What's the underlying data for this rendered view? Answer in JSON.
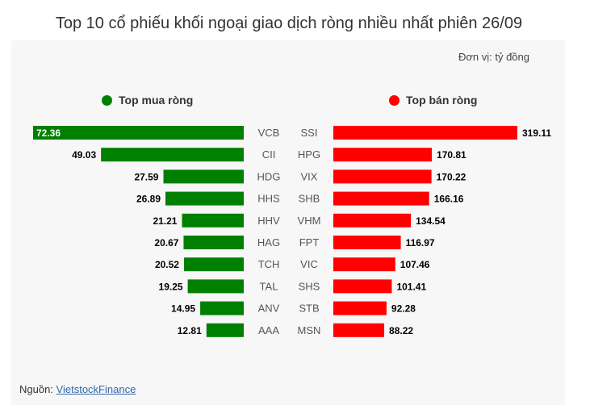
{
  "title": "Top 10 cổ phiếu khối ngoại giao dịch ròng nhiều nhất phiên 26/09",
  "unit": "Đơn vị: tỷ đồng",
  "source_label": "Nguồn:",
  "source_link": "VietstockFinance",
  "colors": {
    "buy": "#008000",
    "sell": "#ff0000"
  },
  "chart_data": [
    {
      "type": "bar",
      "orientation": "horizontal",
      "name": "Top mua ròng",
      "categories": [
        "VCB",
        "CII",
        "HDG",
        "HHS",
        "HHV",
        "HAG",
        "TCH",
        "TAL",
        "ANV",
        "AAA"
      ],
      "values": [
        72.36,
        49.03,
        27.59,
        26.89,
        21.21,
        20.67,
        20.52,
        19.25,
        14.95,
        12.81
      ],
      "color": "#008000"
    },
    {
      "type": "bar",
      "orientation": "horizontal",
      "name": "Top bán ròng",
      "categories": [
        "SSI",
        "HPG",
        "VIX",
        "SHB",
        "VHM",
        "FPT",
        "VIC",
        "SHS",
        "STB",
        "MSN"
      ],
      "values": [
        319.11,
        170.81,
        170.22,
        166.16,
        134.54,
        116.97,
        107.46,
        101.41,
        92.28,
        88.22
      ],
      "color": "#ff0000"
    }
  ]
}
